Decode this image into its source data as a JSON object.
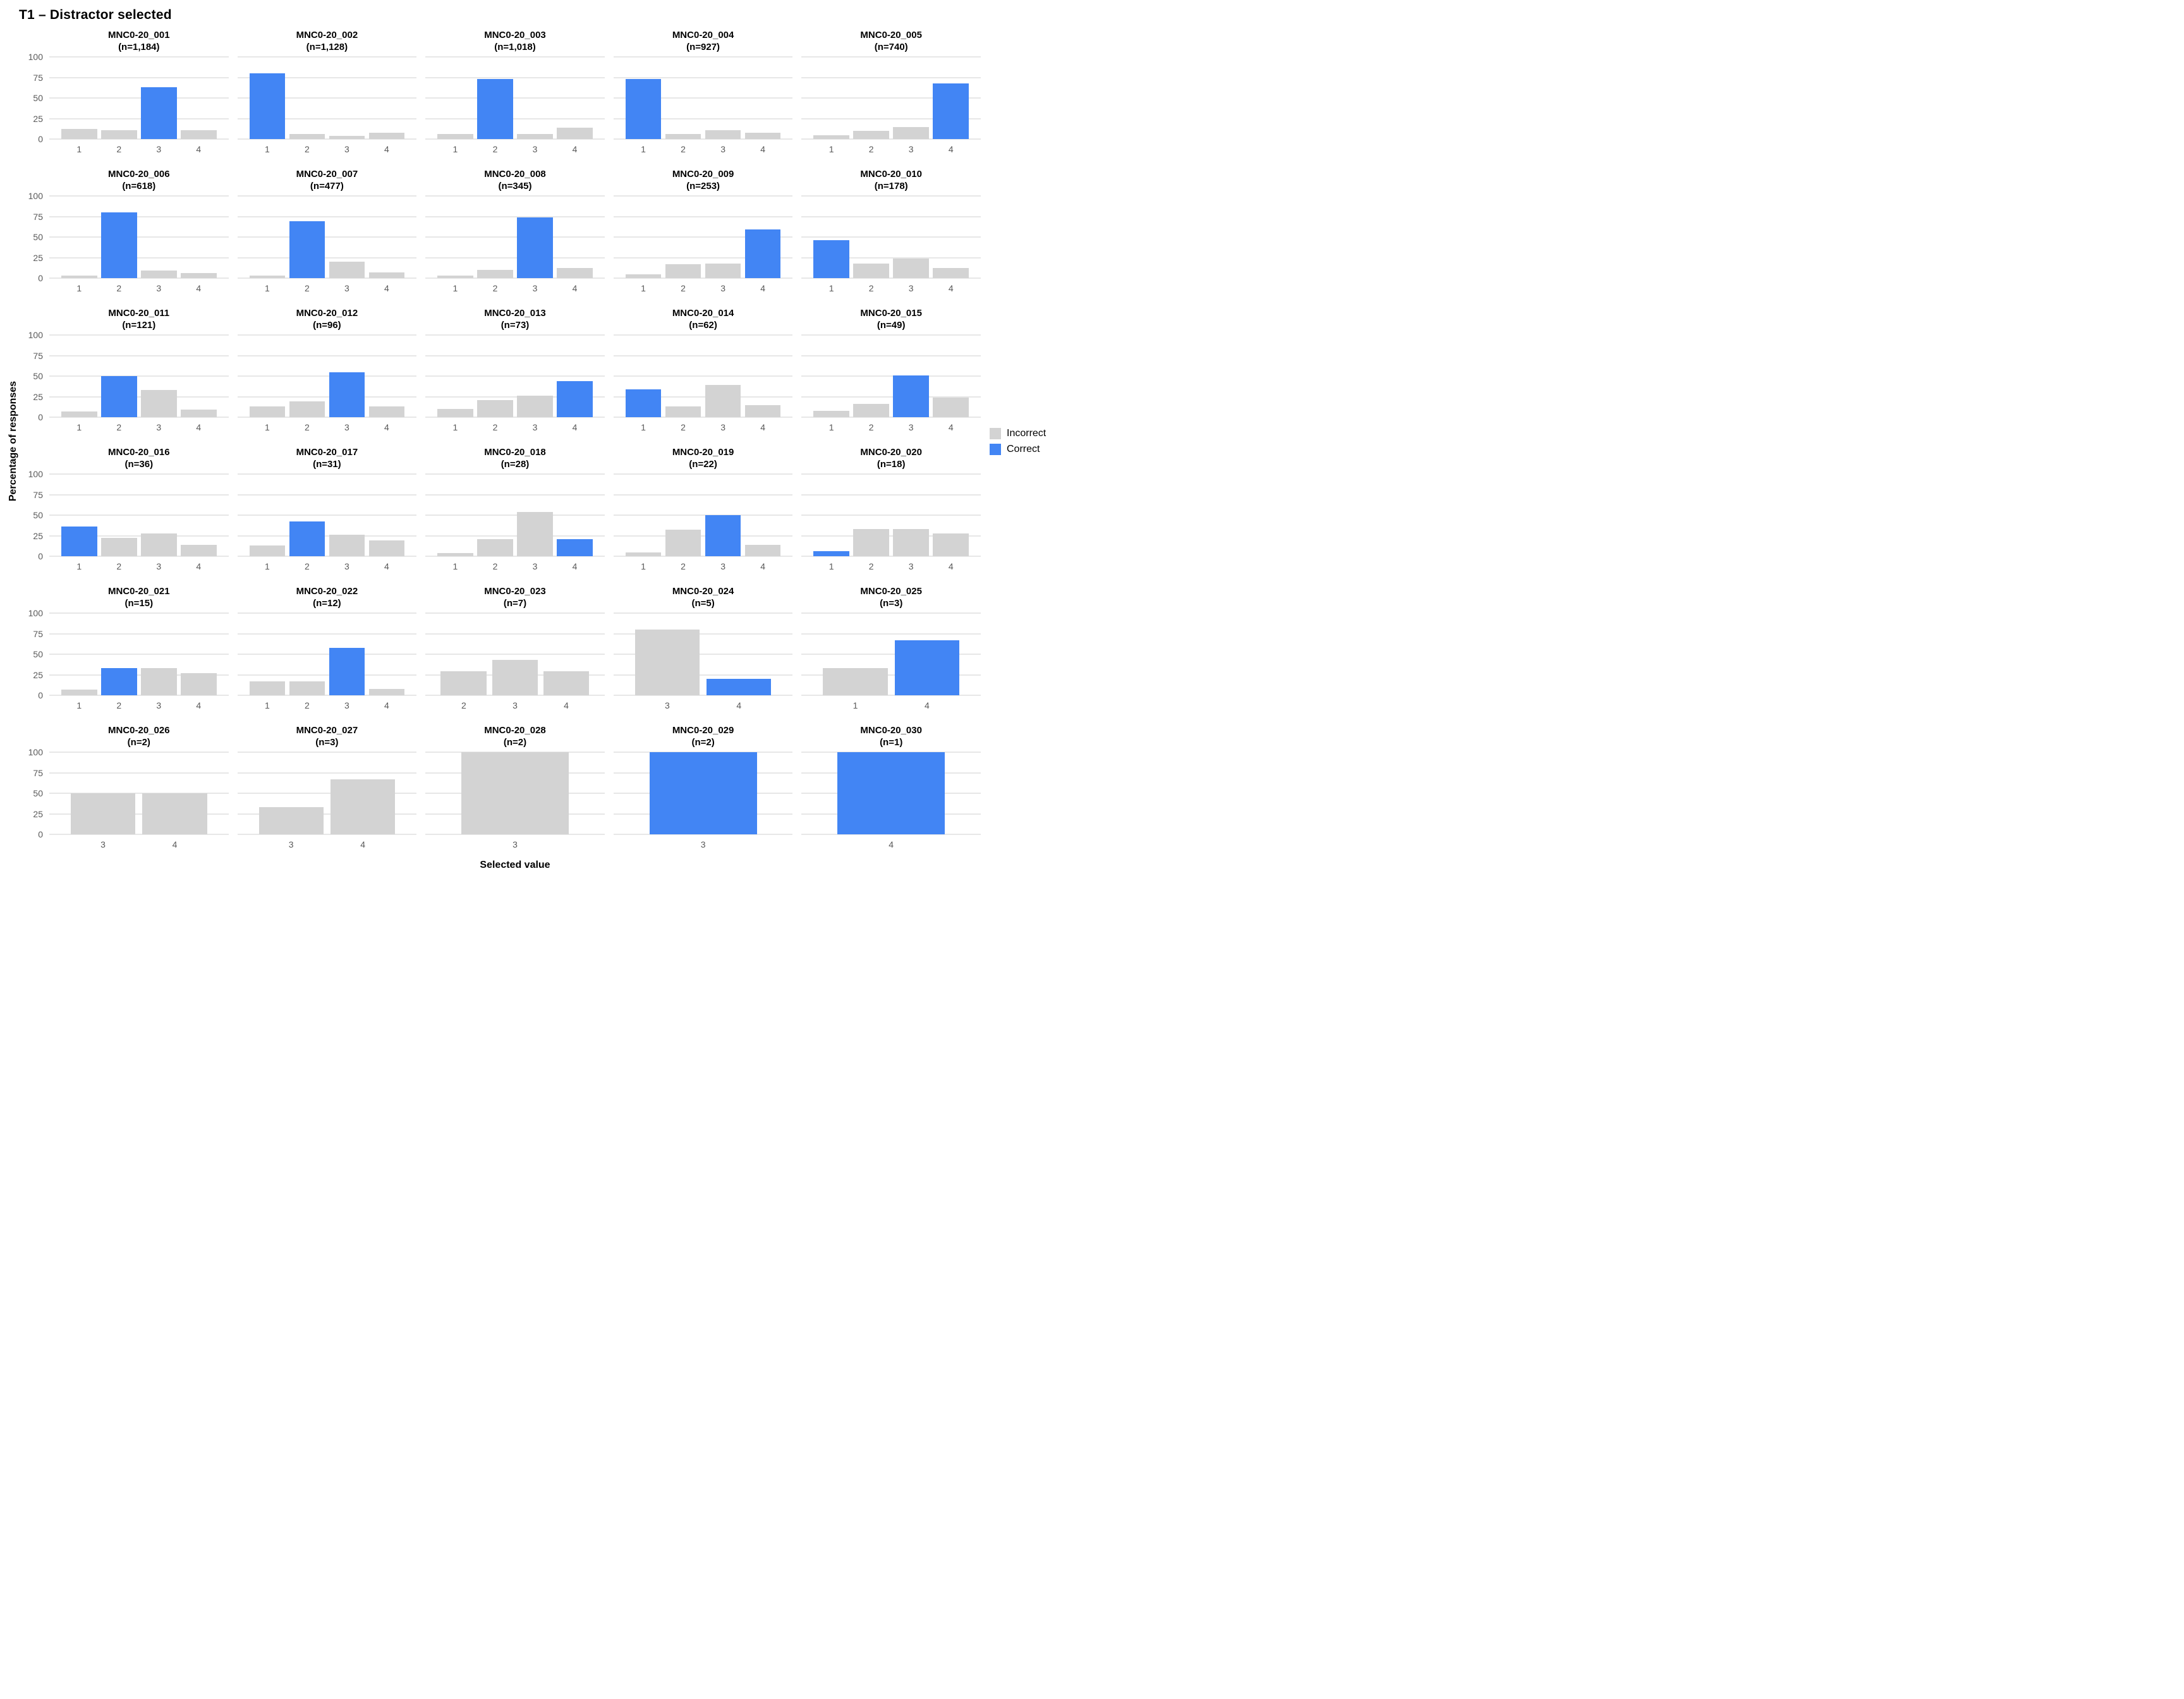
{
  "chart_data": {
    "type": "bar",
    "faceted": true,
    "title": "T1 – Distractor selected",
    "ylabel": "Percentage of responses",
    "xlabel": "Selected value",
    "ylim": [
      0,
      100
    ],
    "yticks": [
      0,
      25,
      50,
      75,
      100
    ],
    "grid": "horizontal-only",
    "legend": {
      "position": "right",
      "items": [
        {
          "key": "incorrect",
          "label": "Incorrect",
          "color": "#d3d3d3"
        },
        {
          "key": "correct",
          "label": "Correct",
          "color": "#4285f4"
        }
      ],
      "colors": {
        "incorrect": "#d3d3d3",
        "correct": "#4285f4"
      }
    },
    "panels": [
      {
        "title": "MNC0-20_001",
        "subtitle": "(n=1,184)",
        "bars": [
          {
            "x": "1",
            "pct": 12,
            "status": "incorrect"
          },
          {
            "x": "2",
            "pct": 11,
            "status": "incorrect"
          },
          {
            "x": "3",
            "pct": 63,
            "status": "correct"
          },
          {
            "x": "4",
            "pct": 11,
            "status": "incorrect"
          }
        ]
      },
      {
        "title": "MNC0-20_002",
        "subtitle": "(n=1,128)",
        "bars": [
          {
            "x": "1",
            "pct": 80,
            "status": "correct"
          },
          {
            "x": "2",
            "pct": 6,
            "status": "incorrect"
          },
          {
            "x": "3",
            "pct": 4,
            "status": "incorrect"
          },
          {
            "x": "4",
            "pct": 8,
            "status": "incorrect"
          }
        ]
      },
      {
        "title": "MNC0-20_003",
        "subtitle": "(n=1,018)",
        "bars": [
          {
            "x": "1",
            "pct": 6,
            "status": "incorrect"
          },
          {
            "x": "2",
            "pct": 73,
            "status": "correct"
          },
          {
            "x": "3",
            "pct": 6,
            "status": "incorrect"
          },
          {
            "x": "4",
            "pct": 14,
            "status": "incorrect"
          }
        ]
      },
      {
        "title": "MNC0-20_004",
        "subtitle": "(n=927)",
        "bars": [
          {
            "x": "1",
            "pct": 73,
            "status": "correct"
          },
          {
            "x": "2",
            "pct": 6,
            "status": "incorrect"
          },
          {
            "x": "3",
            "pct": 11,
            "status": "incorrect"
          },
          {
            "x": "4",
            "pct": 8,
            "status": "incorrect"
          }
        ]
      },
      {
        "title": "MNC0-20_005",
        "subtitle": "(n=740)",
        "bars": [
          {
            "x": "1",
            "pct": 5,
            "status": "incorrect"
          },
          {
            "x": "2",
            "pct": 10,
            "status": "incorrect"
          },
          {
            "x": "3",
            "pct": 15,
            "status": "incorrect"
          },
          {
            "x": "4",
            "pct": 68,
            "status": "correct"
          }
        ]
      },
      {
        "title": "MNC0-20_006",
        "subtitle": "(n=618)",
        "bars": [
          {
            "x": "1",
            "pct": 3,
            "status": "incorrect"
          },
          {
            "x": "2",
            "pct": 80,
            "status": "correct"
          },
          {
            "x": "3",
            "pct": 9,
            "status": "incorrect"
          },
          {
            "x": "4",
            "pct": 6,
            "status": "incorrect"
          }
        ]
      },
      {
        "title": "MNC0-20_007",
        "subtitle": "(n=477)",
        "bars": [
          {
            "x": "1",
            "pct": 3,
            "status": "incorrect"
          },
          {
            "x": "2",
            "pct": 69,
            "status": "correct"
          },
          {
            "x": "3",
            "pct": 20,
            "status": "incorrect"
          },
          {
            "x": "4",
            "pct": 7,
            "status": "incorrect"
          }
        ]
      },
      {
        "title": "MNC0-20_008",
        "subtitle": "(n=345)",
        "bars": [
          {
            "x": "1",
            "pct": 3,
            "status": "incorrect"
          },
          {
            "x": "2",
            "pct": 10,
            "status": "incorrect"
          },
          {
            "x": "3",
            "pct": 74,
            "status": "correct"
          },
          {
            "x": "4",
            "pct": 12,
            "status": "incorrect"
          }
        ]
      },
      {
        "title": "MNC0-20_009",
        "subtitle": "(n=253)",
        "bars": [
          {
            "x": "1",
            "pct": 5,
            "status": "incorrect"
          },
          {
            "x": "2",
            "pct": 17,
            "status": "incorrect"
          },
          {
            "x": "3",
            "pct": 18,
            "status": "incorrect"
          },
          {
            "x": "4",
            "pct": 59,
            "status": "correct"
          }
        ]
      },
      {
        "title": "MNC0-20_010",
        "subtitle": "(n=178)",
        "bars": [
          {
            "x": "1",
            "pct": 46,
            "status": "correct"
          },
          {
            "x": "2",
            "pct": 18,
            "status": "incorrect"
          },
          {
            "x": "3",
            "pct": 24,
            "status": "incorrect"
          },
          {
            "x": "4",
            "pct": 12,
            "status": "incorrect"
          }
        ]
      },
      {
        "title": "MNC0-20_011",
        "subtitle": "(n=121)",
        "bars": [
          {
            "x": "1",
            "pct": 7,
            "status": "incorrect"
          },
          {
            "x": "2",
            "pct": 50,
            "status": "correct"
          },
          {
            "x": "3",
            "pct": 33,
            "status": "incorrect"
          },
          {
            "x": "4",
            "pct": 9,
            "status": "incorrect"
          }
        ]
      },
      {
        "title": "MNC0-20_012",
        "subtitle": "(n=96)",
        "bars": [
          {
            "x": "1",
            "pct": 13,
            "status": "incorrect"
          },
          {
            "x": "2",
            "pct": 19,
            "status": "incorrect"
          },
          {
            "x": "3",
            "pct": 55,
            "status": "correct"
          },
          {
            "x": "4",
            "pct": 13,
            "status": "incorrect"
          }
        ]
      },
      {
        "title": "MNC0-20_013",
        "subtitle": "(n=73)",
        "bars": [
          {
            "x": "1",
            "pct": 10,
            "status": "incorrect"
          },
          {
            "x": "2",
            "pct": 21,
            "status": "incorrect"
          },
          {
            "x": "3",
            "pct": 26,
            "status": "incorrect"
          },
          {
            "x": "4",
            "pct": 44,
            "status": "correct"
          }
        ]
      },
      {
        "title": "MNC0-20_014",
        "subtitle": "(n=62)",
        "bars": [
          {
            "x": "1",
            "pct": 34,
            "status": "correct"
          },
          {
            "x": "2",
            "pct": 13,
            "status": "incorrect"
          },
          {
            "x": "3",
            "pct": 39,
            "status": "incorrect"
          },
          {
            "x": "4",
            "pct": 15,
            "status": "incorrect"
          }
        ]
      },
      {
        "title": "MNC0-20_015",
        "subtitle": "(n=49)",
        "bars": [
          {
            "x": "1",
            "pct": 8,
            "status": "incorrect"
          },
          {
            "x": "2",
            "pct": 16,
            "status": "incorrect"
          },
          {
            "x": "3",
            "pct": 51,
            "status": "correct"
          },
          {
            "x": "4",
            "pct": 24,
            "status": "incorrect"
          }
        ]
      },
      {
        "title": "MNC0-20_016",
        "subtitle": "(n=36)",
        "bars": [
          {
            "x": "1",
            "pct": 36,
            "status": "correct"
          },
          {
            "x": "2",
            "pct": 22,
            "status": "incorrect"
          },
          {
            "x": "3",
            "pct": 28,
            "status": "incorrect"
          },
          {
            "x": "4",
            "pct": 14,
            "status": "incorrect"
          }
        ]
      },
      {
        "title": "MNC0-20_017",
        "subtitle": "(n=31)",
        "bars": [
          {
            "x": "1",
            "pct": 13,
            "status": "incorrect"
          },
          {
            "x": "2",
            "pct": 42,
            "status": "correct"
          },
          {
            "x": "3",
            "pct": 26,
            "status": "incorrect"
          },
          {
            "x": "4",
            "pct": 19,
            "status": "incorrect"
          }
        ]
      },
      {
        "title": "MNC0-20_018",
        "subtitle": "(n=28)",
        "bars": [
          {
            "x": "1",
            "pct": 4,
            "status": "incorrect"
          },
          {
            "x": "2",
            "pct": 21,
            "status": "incorrect"
          },
          {
            "x": "3",
            "pct": 54,
            "status": "incorrect"
          },
          {
            "x": "4",
            "pct": 21,
            "status": "correct"
          }
        ]
      },
      {
        "title": "MNC0-20_019",
        "subtitle": "(n=22)",
        "bars": [
          {
            "x": "1",
            "pct": 5,
            "status": "incorrect"
          },
          {
            "x": "2",
            "pct": 32,
            "status": "incorrect"
          },
          {
            "x": "3",
            "pct": 50,
            "status": "correct"
          },
          {
            "x": "4",
            "pct": 14,
            "status": "incorrect"
          }
        ]
      },
      {
        "title": "MNC0-20_020",
        "subtitle": "(n=18)",
        "bars": [
          {
            "x": "1",
            "pct": 6,
            "status": "correct"
          },
          {
            "x": "2",
            "pct": 33,
            "status": "incorrect"
          },
          {
            "x": "3",
            "pct": 33,
            "status": "incorrect"
          },
          {
            "x": "4",
            "pct": 28,
            "status": "incorrect"
          }
        ]
      },
      {
        "title": "MNC0-20_021",
        "subtitle": "(n=15)",
        "bars": [
          {
            "x": "1",
            "pct": 7,
            "status": "incorrect"
          },
          {
            "x": "2",
            "pct": 33,
            "status": "correct"
          },
          {
            "x": "3",
            "pct": 33,
            "status": "incorrect"
          },
          {
            "x": "4",
            "pct": 27,
            "status": "incorrect"
          }
        ]
      },
      {
        "title": "MNC0-20_022",
        "subtitle": "(n=12)",
        "bars": [
          {
            "x": "1",
            "pct": 17,
            "status": "incorrect"
          },
          {
            "x": "2",
            "pct": 17,
            "status": "incorrect"
          },
          {
            "x": "3",
            "pct": 58,
            "status": "correct"
          },
          {
            "x": "4",
            "pct": 8,
            "status": "incorrect"
          }
        ]
      },
      {
        "title": "MNC0-20_023",
        "subtitle": "(n=7)",
        "bars": [
          {
            "x": "2",
            "pct": 29,
            "status": "incorrect"
          },
          {
            "x": "3",
            "pct": 43,
            "status": "incorrect"
          },
          {
            "x": "4",
            "pct": 29,
            "status": "incorrect"
          }
        ]
      },
      {
        "title": "MNC0-20_024",
        "subtitle": "(n=5)",
        "bars": [
          {
            "x": "3",
            "pct": 80,
            "status": "incorrect"
          },
          {
            "x": "4",
            "pct": 20,
            "status": "correct"
          }
        ]
      },
      {
        "title": "MNC0-20_025",
        "subtitle": "(n=3)",
        "bars": [
          {
            "x": "1",
            "pct": 33,
            "status": "incorrect"
          },
          {
            "x": "4",
            "pct": 67,
            "status": "correct"
          }
        ]
      },
      {
        "title": "MNC0-20_026",
        "subtitle": "(n=2)",
        "bars": [
          {
            "x": "3",
            "pct": 50,
            "status": "incorrect"
          },
          {
            "x": "4",
            "pct": 50,
            "status": "incorrect"
          }
        ]
      },
      {
        "title": "MNC0-20_027",
        "subtitle": "(n=3)",
        "bars": [
          {
            "x": "3",
            "pct": 33,
            "status": "incorrect"
          },
          {
            "x": "4",
            "pct": 67,
            "status": "incorrect"
          }
        ]
      },
      {
        "title": "MNC0-20_028",
        "subtitle": "(n=2)",
        "bars": [
          {
            "x": "3",
            "pct": 100,
            "status": "incorrect"
          }
        ]
      },
      {
        "title": "MNC0-20_029",
        "subtitle": "(n=2)",
        "bars": [
          {
            "x": "3",
            "pct": 100,
            "status": "correct"
          }
        ]
      },
      {
        "title": "MNC0-20_030",
        "subtitle": "(n=1)",
        "bars": [
          {
            "x": "4",
            "pct": 100,
            "status": "correct"
          }
        ]
      }
    ]
  }
}
